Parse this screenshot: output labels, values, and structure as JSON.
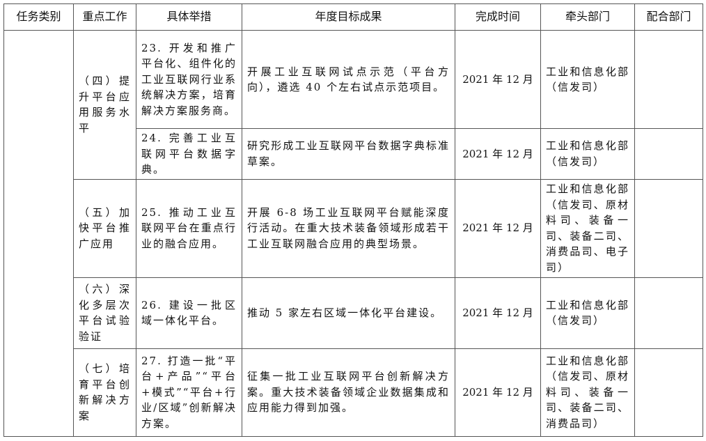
{
  "headers": [
    "任务类别",
    "重点工作",
    "具体举措",
    "年度目标成果",
    "完成时间",
    "牵头部门",
    "配合部门"
  ],
  "rows": [
    {
      "key_work": "（四）提升平台应用服务水平",
      "measure": "23. 开发和推广平台化、组件化的工业互联网行业系统解决方案，培育解决方案服务商。",
      "goal": "开展工业互联网试点示范（平台方向），遴选 40 个左右试点示范项目。",
      "deadline": "2021 年 12 月",
      "lead": "工业和信息化部（信发司）",
      "support": ""
    },
    {
      "measure": "24. 完善工业互联网平台数据字典。",
      "goal": "研究形成工业互联网平台数据字典标准草案。",
      "deadline": "2021 年 12 月",
      "lead": "工业和信息化部（信发司）",
      "support": ""
    },
    {
      "key_work": "（五）加快平台推广应用",
      "measure": "25. 推动工业互联网平台在重点行业的融合应用。",
      "goal": "开展 6-8 场工业互联网平台赋能深度行活动。在重大技术装备领域形成若干工业互联网融合应用的典型场景。",
      "deadline": "2021 年 12 月",
      "lead": "工业和信息化部（信发司、原材料司、装备一司、装备二司、消费品司、电子司）",
      "support": ""
    },
    {
      "key_work": "（六）深化多层次平台试验验证",
      "measure": "26. 建设一批区域一体化平台。",
      "goal": "推动 5 家左右区域一体化平台建设。",
      "deadline": "2021 年 12 月",
      "lead": "工业和信息化部（信发司）",
      "support": ""
    },
    {
      "key_work": "（七）培育平台创新解决方案",
      "measure": "27. 打造一批“平台+产品”“平台+模式”“平台+行业/区域”创新解决方案。",
      "goal": "征集一批工业互联网平台创新解决方案。重大技术装备领域企业数据集成和应用能力得到加强。",
      "deadline": "2021 年 12 月",
      "lead": "工业和信息化部（信发司、原材料司、装备一司、装备二司、消费品司）",
      "support": ""
    }
  ]
}
